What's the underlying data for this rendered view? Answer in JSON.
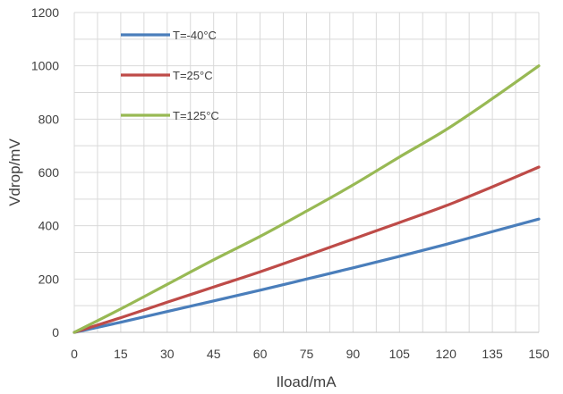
{
  "chart_data": {
    "type": "line",
    "xlabel": "Iload/mA",
    "ylabel": "Vdrop/mV",
    "xlim": [
      0,
      150
    ],
    "ylim": [
      0,
      1200
    ],
    "xticks": [
      0,
      15,
      30,
      45,
      60,
      75,
      90,
      105,
      120,
      135,
      150
    ],
    "yticks": [
      0,
      200,
      400,
      600,
      800,
      1000,
      1200
    ],
    "grid": true,
    "legend_position": "top-left",
    "series": [
      {
        "name": "T=-40°C",
        "color": "#4a7ebb",
        "x": [
          0,
          15,
          30,
          45,
          60,
          75,
          90,
          105,
          120,
          135,
          150
        ],
        "y": [
          0,
          38,
          78,
          118,
          158,
          200,
          242,
          285,
          330,
          378,
          425
        ]
      },
      {
        "name": "T=25°C",
        "color": "#be4b48",
        "x": [
          0,
          15,
          30,
          45,
          60,
          75,
          90,
          105,
          120,
          135,
          150
        ],
        "y": [
          0,
          55,
          113,
          170,
          227,
          288,
          350,
          412,
          475,
          546,
          620
        ]
      },
      {
        "name": "T=125°C",
        "color": "#98b954",
        "x": [
          0,
          15,
          30,
          45,
          60,
          75,
          90,
          105,
          120,
          135,
          150
        ],
        "y": [
          0,
          88,
          180,
          272,
          360,
          455,
          553,
          658,
          760,
          877,
          1000
        ]
      }
    ]
  }
}
